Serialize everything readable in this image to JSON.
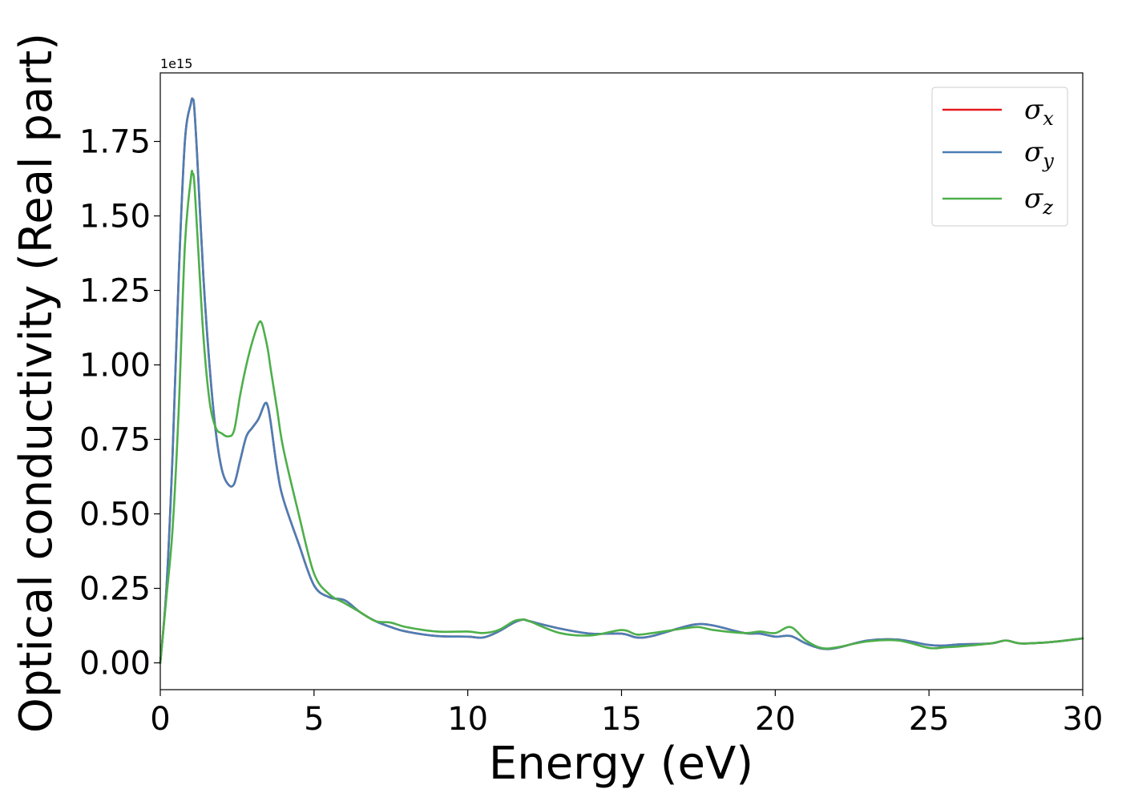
{
  "chart_data": {
    "type": "line",
    "title": "",
    "xlabel": "Energy (eV)",
    "ylabel": "Optical conductivity (Real part)",
    "y_offset_label": "1e15",
    "xlim": [
      0,
      30
    ],
    "ylim": [
      -0.09,
      1.98
    ],
    "xticks": [
      0,
      5,
      10,
      15,
      20,
      25,
      30
    ],
    "xtick_labels": [
      "0",
      "5",
      "10",
      "15",
      "20",
      "25",
      "30"
    ],
    "yticks": [
      0.0,
      0.25,
      0.5,
      0.75,
      1.0,
      1.25,
      1.5,
      1.75
    ],
    "ytick_labels": [
      "0.00",
      "0.25",
      "0.50",
      "0.75",
      "1.00",
      "1.25",
      "1.50",
      "1.75"
    ],
    "grid": false,
    "legend_position": "top-right",
    "series": [
      {
        "name": "σx",
        "label_main": "σ",
        "label_sub": "x",
        "color": "#e41a1c",
        "x": [
          0,
          0.2,
          0.4,
          0.6,
          0.8,
          1.0,
          1.05,
          1.1,
          1.2,
          1.4,
          1.6,
          1.8,
          2.0,
          2.2,
          2.4,
          2.6,
          2.8,
          3.0,
          3.2,
          3.4,
          3.5,
          3.6,
          3.8,
          4.0,
          4.5,
          5.0,
          5.5,
          6.0,
          6.5,
          7.0,
          7.5,
          8.0,
          9.0,
          10.0,
          10.5,
          11.0,
          11.5,
          11.8,
          12.0,
          13.0,
          14.0,
          15.0,
          15.5,
          16.0,
          17.0,
          17.5,
          18.0,
          19.0,
          19.5,
          20.0,
          20.5,
          21.0,
          21.5,
          22.0,
          23.0,
          24.0,
          25.0,
          25.5,
          26.0,
          27.0,
          27.5,
          28.0,
          29.0,
          30.0
        ],
        "y": [
          0.0,
          0.25,
          0.7,
          1.3,
          1.75,
          1.88,
          1.89,
          1.87,
          1.7,
          1.3,
          1.0,
          0.78,
          0.65,
          0.6,
          0.6,
          0.68,
          0.76,
          0.79,
          0.82,
          0.87,
          0.86,
          0.8,
          0.65,
          0.55,
          0.4,
          0.26,
          0.22,
          0.21,
          0.17,
          0.14,
          0.12,
          0.105,
          0.09,
          0.088,
          0.085,
          0.105,
          0.135,
          0.145,
          0.14,
          0.115,
          0.098,
          0.098,
          0.085,
          0.09,
          0.12,
          0.13,
          0.125,
          0.1,
          0.098,
          0.088,
          0.09,
          0.065,
          0.048,
          0.05,
          0.075,
          0.078,
          0.06,
          0.058,
          0.062,
          0.065,
          0.075,
          0.065,
          0.07,
          0.082
        ]
      },
      {
        "name": "σy",
        "label_main": "σ",
        "label_sub": "y",
        "color": "#4a7eb5",
        "x": [
          0,
          0.2,
          0.4,
          0.6,
          0.8,
          1.0,
          1.05,
          1.1,
          1.2,
          1.4,
          1.6,
          1.8,
          2.0,
          2.2,
          2.4,
          2.6,
          2.8,
          3.0,
          3.2,
          3.4,
          3.5,
          3.6,
          3.8,
          4.0,
          4.5,
          5.0,
          5.5,
          6.0,
          6.5,
          7.0,
          7.5,
          8.0,
          9.0,
          10.0,
          10.5,
          11.0,
          11.5,
          11.8,
          12.0,
          13.0,
          14.0,
          15.0,
          15.5,
          16.0,
          17.0,
          17.5,
          18.0,
          19.0,
          19.5,
          20.0,
          20.5,
          21.0,
          21.5,
          22.0,
          23.0,
          24.0,
          25.0,
          25.5,
          26.0,
          27.0,
          27.5,
          28.0,
          29.0,
          30.0
        ],
        "y": [
          0.0,
          0.25,
          0.7,
          1.3,
          1.75,
          1.88,
          1.89,
          1.87,
          1.7,
          1.3,
          1.0,
          0.78,
          0.65,
          0.6,
          0.6,
          0.68,
          0.76,
          0.79,
          0.82,
          0.87,
          0.86,
          0.8,
          0.65,
          0.55,
          0.4,
          0.26,
          0.22,
          0.21,
          0.17,
          0.14,
          0.12,
          0.105,
          0.09,
          0.088,
          0.085,
          0.105,
          0.135,
          0.145,
          0.14,
          0.115,
          0.098,
          0.098,
          0.085,
          0.09,
          0.12,
          0.13,
          0.125,
          0.1,
          0.098,
          0.088,
          0.09,
          0.065,
          0.048,
          0.05,
          0.075,
          0.078,
          0.06,
          0.058,
          0.062,
          0.065,
          0.075,
          0.065,
          0.07,
          0.082
        ]
      },
      {
        "name": "σz",
        "label_main": "σ",
        "label_sub": "z",
        "color": "#4daf4a",
        "x": [
          0,
          0.2,
          0.4,
          0.6,
          0.8,
          1.0,
          1.05,
          1.1,
          1.2,
          1.4,
          1.6,
          1.8,
          2.0,
          2.2,
          2.4,
          2.6,
          2.8,
          3.0,
          3.2,
          3.3,
          3.4,
          3.5,
          3.6,
          3.8,
          4.0,
          4.5,
          5.0,
          5.5,
          6.0,
          6.5,
          7.0,
          7.5,
          8.0,
          9.0,
          10.0,
          10.5,
          11.0,
          11.5,
          11.8,
          12.0,
          13.0,
          14.0,
          15.0,
          15.5,
          16.0,
          17.0,
          17.5,
          18.0,
          19.0,
          19.5,
          20.0,
          20.5,
          21.0,
          21.5,
          22.0,
          23.0,
          24.0,
          25.0,
          25.5,
          26.0,
          27.0,
          27.5,
          28.0,
          29.0,
          30.0
        ],
        "y": [
          0.0,
          0.22,
          0.45,
          0.85,
          1.4,
          1.63,
          1.64,
          1.62,
          1.45,
          1.1,
          0.88,
          0.79,
          0.77,
          0.76,
          0.78,
          0.9,
          1.0,
          1.08,
          1.14,
          1.14,
          1.1,
          1.05,
          0.98,
          0.85,
          0.72,
          0.5,
          0.3,
          0.23,
          0.2,
          0.17,
          0.14,
          0.135,
          0.12,
          0.105,
          0.105,
          0.1,
          0.11,
          0.14,
          0.145,
          0.14,
          0.1,
          0.092,
          0.11,
          0.095,
          0.1,
          0.115,
          0.12,
          0.11,
          0.1,
          0.105,
          0.1,
          0.12,
          0.075,
          0.05,
          0.052,
          0.072,
          0.075,
          0.05,
          0.052,
          0.055,
          0.065,
          0.075,
          0.065,
          0.07,
          0.082
        ]
      }
    ]
  }
}
